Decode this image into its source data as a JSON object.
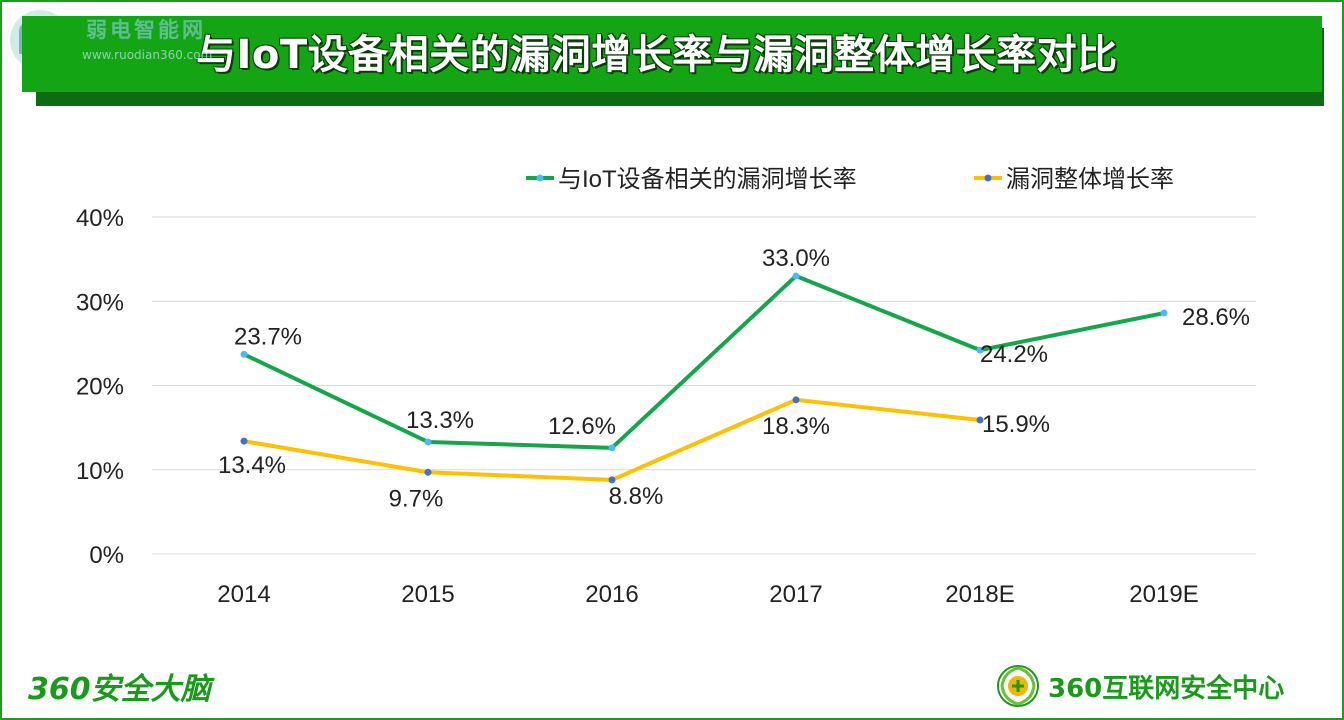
{
  "title": "与IoT设备相关的漏洞增长率与漏洞整体增长率对比",
  "watermark": {
    "name": "弱电智能网",
    "url": "www.ruodian360.com"
  },
  "footer": {
    "left": "360安全大脑",
    "right": "360互联网安全中心"
  },
  "colors": {
    "accent": "#13a513",
    "series_iot": "#14a64a",
    "series_total": "#ffc000",
    "marker_iot": "#4db8ff",
    "marker_total": "#4472c4",
    "grid": "#d9d9d9"
  },
  "chart_data": {
    "type": "line",
    "title": "与IoT设备相关的漏洞增长率与漏洞整体增长率对比",
    "categories": [
      "2014",
      "2015",
      "2016",
      "2017",
      "2018E",
      "2019E"
    ],
    "yticks": [
      "0%",
      "10%",
      "20%",
      "30%",
      "40%"
    ],
    "ylim": [
      0,
      40
    ],
    "grid": true,
    "legend_position": "top-right",
    "series": [
      {
        "name": "与IoT设备相关的漏洞增长率",
        "values": [
          23.7,
          13.3,
          12.6,
          33.0,
          24.2,
          28.6
        ],
        "labels": [
          "23.7%",
          "13.3%",
          "12.6%",
          "33.0%",
          "24.2%",
          "28.6%"
        ]
      },
      {
        "name": "漏洞整体增长率",
        "values": [
          13.4,
          9.7,
          8.8,
          18.3,
          15.9,
          null
        ],
        "labels": [
          "13.4%",
          "9.7%",
          "8.8%",
          "18.3%",
          "15.9%",
          null
        ]
      }
    ]
  }
}
